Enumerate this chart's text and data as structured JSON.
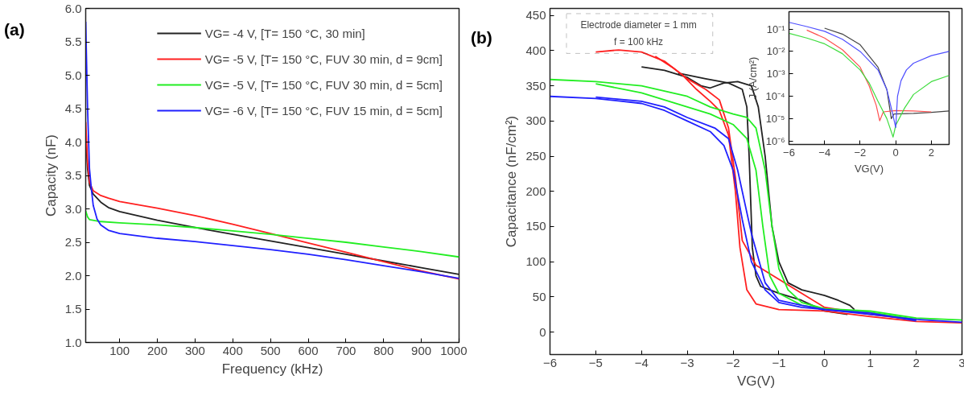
{
  "chart_data": [
    {
      "type": "line",
      "xlabel": "Frequency (kHz)",
      "ylabel": "Capacity (nF)",
      "annotations": [
        "(a)"
      ],
      "xlim": [
        10,
        1000
      ],
      "xticks": [
        100,
        200,
        300,
        400,
        500,
        600,
        700,
        800,
        900,
        1000
      ],
      "ylim": [
        1.0,
        6.0
      ],
      "yticks": [
        {
          "value": 1.0,
          "label": "1.0"
        },
        1.5,
        {
          "value": 2.0,
          "label": "2.0"
        },
        2.5,
        {
          "value": 3.0,
          "label": "3.0"
        },
        3.5,
        {
          "value": 4.0,
          "label": "4.0"
        },
        4.5,
        {
          "value": 5.0,
          "label": "5.0"
        },
        5.5,
        {
          "value": 6.0,
          "label": "6.0"
        }
      ],
      "grid": false,
      "legend": "top right",
      "series": [
        {
          "name": "VG= -4 V, [T= 150 °C, 30 min]",
          "color": "#222222",
          "x": [
            10,
            15,
            20,
            30,
            50,
            70,
            100,
            200,
            300,
            400,
            500,
            600,
            700,
            800,
            900,
            1000
          ],
          "values": [
            4.1,
            3.6,
            3.35,
            3.22,
            3.1,
            3.02,
            2.96,
            2.83,
            2.72,
            2.62,
            2.52,
            2.42,
            2.32,
            2.22,
            2.12,
            2.02
          ]
        },
        {
          "name": "VG= -5 V, [T= 150 °C, FUV 30 min, d = 9cm]",
          "color": "#ff2020",
          "x": [
            10,
            15,
            20,
            30,
            50,
            70,
            100,
            200,
            300,
            400,
            500,
            600,
            700,
            800,
            900,
            1000
          ],
          "values": [
            4.3,
            3.7,
            3.4,
            3.27,
            3.2,
            3.16,
            3.11,
            3.01,
            2.9,
            2.77,
            2.63,
            2.49,
            2.35,
            2.21,
            2.07,
            1.95
          ]
        },
        {
          "name": "VG= -5 V, [T= 150 °C, FUV 30 min, d = 5cm]",
          "color": "#22ee22",
          "x": [
            10,
            15,
            20,
            50,
            100,
            200,
            300,
            400,
            500,
            600,
            700,
            800,
            900,
            1000
          ],
          "values": [
            2.97,
            2.88,
            2.84,
            2.81,
            2.79,
            2.76,
            2.72,
            2.67,
            2.62,
            2.56,
            2.5,
            2.43,
            2.36,
            2.28
          ]
        },
        {
          "name": "VG= -6 V, [T= 150 °C, FUV 15 min, d = 5cm]",
          "color": "#2020ff",
          "x": [
            10,
            15,
            20,
            25,
            30,
            40,
            50,
            70,
            100,
            200,
            300,
            400,
            500,
            600,
            700,
            800,
            900,
            1000
          ],
          "values": [
            5.8,
            4.5,
            3.6,
            3.3,
            3.05,
            2.85,
            2.76,
            2.68,
            2.63,
            2.56,
            2.51,
            2.45,
            2.39,
            2.32,
            2.24,
            2.15,
            2.06,
            1.96
          ]
        }
      ]
    },
    {
      "type": "line",
      "xlabel": "VG(V)",
      "ylabel": "Capacitance (nF/cm²)",
      "annotations": [
        "(b)",
        "Electrode diameter = 1 mm\nf = 100 kHz"
      ],
      "xlim": [
        -6,
        3
      ],
      "xticks": [
        -6,
        -5,
        -4,
        -3,
        -2,
        -1,
        0,
        1,
        2,
        3
      ],
      "ylim": [
        -32,
        460
      ],
      "yticks": [
        0,
        50,
        100,
        150,
        200,
        250,
        300,
        350,
        400,
        450
      ],
      "grid": false,
      "legend": false,
      "series": [
        {
          "color": "#222222",
          "x": [
            -4,
            -3.5,
            -3,
            -2.7,
            -2.5,
            -2.2,
            -1.9,
            -1.6,
            -1.45,
            -1.3,
            -1.15,
            -1.0,
            -0.8,
            -0.5,
            0,
            0.3,
            0.55,
            0.65
          ],
          "values": [
            377,
            372,
            362,
            350,
            347,
            354,
            356,
            350,
            320,
            250,
            150,
            100,
            70,
            60,
            52,
            45,
            38,
            32
          ]
        },
        {
          "color": "#222222",
          "x": [
            -3.2,
            -2.6,
            -2.1,
            -1.8,
            -1.7,
            -1.65,
            -1.58,
            -1.5,
            -1.4,
            -1,
            -0.5,
            0,
            0.5
          ],
          "values": [
            368,
            360,
            354,
            345,
            320,
            250,
            120,
            80,
            65,
            55,
            45,
            30,
            25
          ]
        },
        {
          "color": "#ff2020",
          "x": [
            -5,
            -4.5,
            -4,
            -3.5,
            -3.1,
            -2.8,
            -2.5,
            -2.3,
            -2.1,
            -1.95,
            -1.85,
            -1.7,
            -1.5,
            -1,
            0,
            1,
            2,
            3
          ],
          "values": [
            398,
            401,
            398,
            385,
            365,
            345,
            328,
            315,
            280,
            200,
            120,
            60,
            40,
            32,
            30,
            22,
            15,
            13
          ]
        },
        {
          "color": "#ff2020",
          "x": [
            -3.7,
            -3.3,
            -3,
            -2.6,
            -2.3,
            -2.1,
            -1.95,
            -1.8,
            -1.5,
            -1,
            -0.5,
            0,
            1,
            2
          ],
          "values": [
            392,
            375,
            360,
            345,
            330,
            290,
            220,
            130,
            95,
            75,
            55,
            35,
            25,
            17
          ]
        },
        {
          "color": "#22ee22",
          "x": [
            -6,
            -5,
            -4,
            -3,
            -2.5,
            -2,
            -1.7,
            -1.5,
            -1.3,
            -1.15,
            -1.0,
            -0.8,
            -0.5,
            0,
            1,
            2,
            3
          ],
          "values": [
            359,
            356,
            350,
            335,
            320,
            310,
            305,
            290,
            230,
            150,
            90,
            60,
            42,
            33,
            30,
            20,
            17
          ]
        },
        {
          "color": "#22ee22",
          "x": [
            -5,
            -4,
            -3,
            -2.5,
            -2,
            -1.7,
            -1.5,
            -1.35,
            -1.2,
            -1,
            -0.5,
            0,
            1,
            2
          ],
          "values": [
            353,
            340,
            320,
            310,
            295,
            275,
            230,
            150,
            80,
            55,
            38,
            33,
            28,
            18
          ]
        },
        {
          "color": "#2020ff",
          "x": [
            -6,
            -5,
            -4,
            -3.5,
            -3,
            -2.5,
            -2.2,
            -2,
            -1.8,
            -1.6,
            -1.3,
            -1,
            -0.5,
            0,
            1,
            2,
            3
          ],
          "values": [
            335,
            332,
            325,
            315,
            300,
            285,
            265,
            230,
            160,
            100,
            60,
            42,
            35,
            32,
            25,
            18,
            14
          ]
        },
        {
          "color": "#2020ff",
          "x": [
            -5,
            -4,
            -3.5,
            -3,
            -2.4,
            -2.1,
            -1.9,
            -1.6,
            -1.3,
            -1,
            -0.5,
            0,
            1,
            2
          ],
          "values": [
            334,
            328,
            320,
            305,
            290,
            275,
            230,
            140,
            70,
            45,
            38,
            32,
            27,
            16
          ]
        }
      ]
    },
    {
      "type": "line",
      "xlabel": "VG(V)",
      "ylabel": "J (A/cm²)",
      "log": "y",
      "xlim": [
        -6,
        3
      ],
      "xticks": [
        -6,
        -4,
        -2,
        0,
        2
      ],
      "ylim": [
        7e-07,
        0.6
      ],
      "yticks": [
        {
          "value": 0.1,
          "label": "10⁻¹"
        },
        {
          "value": 0.01,
          "label": "10⁻²"
        },
        {
          "value": 0.001,
          "label": "10⁻³"
        },
        {
          "value": 0.0001,
          "label": "10⁻⁴"
        },
        {
          "value": 1e-05,
          "label": "10⁻⁵"
        },
        {
          "value": 1e-06,
          "label": "10⁻⁶"
        }
      ],
      "grid": false,
      "legend": false,
      "series": [
        {
          "color": "#444444",
          "x": [
            -4,
            -3,
            -2,
            -1,
            -0.5,
            -0.25,
            -0.1,
            1,
            2,
            3
          ],
          "values": [
            0.11,
            0.06,
            0.02,
            0.002,
            0.0002,
            1e-05,
            1.6e-05,
            1.7e-05,
            1.9e-05,
            2.2e-05
          ]
        },
        {
          "color": "#ff5050",
          "x": [
            -5,
            -4,
            -3,
            -2,
            -1.5,
            -1.1,
            -0.9,
            -0.7,
            0,
            1,
            2
          ],
          "values": [
            0.09,
            0.04,
            0.012,
            0.002,
            0.0003,
            4e-05,
            8e-06,
            2e-05,
            2.3e-05,
            2.2e-05,
            2e-05
          ]
        },
        {
          "color": "#40dd40",
          "x": [
            -6,
            -5,
            -4,
            -3,
            -2,
            -1.5,
            -1,
            -0.5,
            -0.15,
            0,
            0.5,
            1,
            2,
            3
          ],
          "values": [
            0.065,
            0.04,
            0.022,
            0.008,
            0.0015,
            0.0004,
            6e-05,
            1e-05,
            1.5e-06,
            5e-06,
            3e-05,
            0.00012,
            0.00045,
            0.00085
          ]
        },
        {
          "color": "#5050ff",
          "x": [
            -6,
            -5,
            -4,
            -3,
            -2,
            -1,
            -0.5,
            -0.2,
            0,
            0.1,
            0.3,
            0.6,
            1,
            2,
            3
          ],
          "values": [
            0.2,
            0.13,
            0.08,
            0.035,
            0.01,
            0.0015,
            0.0002,
            2e-05,
            4e-06,
            0.0001,
            0.0005,
            0.0015,
            0.003,
            0.0065,
            0.01
          ]
        }
      ]
    }
  ]
}
